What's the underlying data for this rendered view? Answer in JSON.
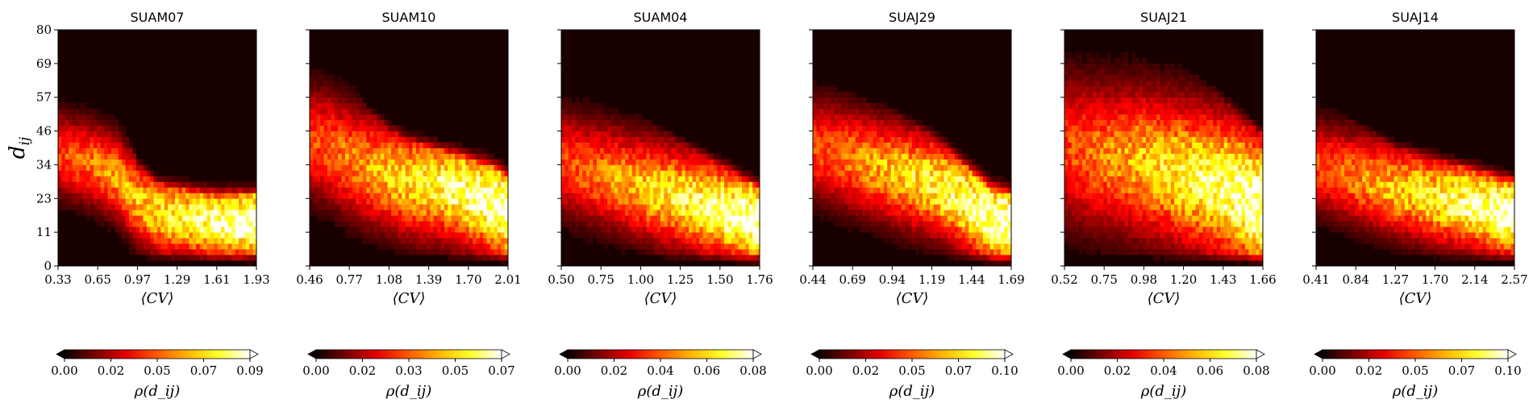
{
  "chart_data": [
    {
      "type": "heatmap",
      "title": "SUAM07",
      "xticks": [
        "0.33",
        "0.65",
        "0.97",
        "1.29",
        "1.61",
        "1.93"
      ],
      "xlim": [
        0.33,
        1.93
      ],
      "xlabel": "⟨CV⟩",
      "ylabel": "d_ij",
      "yticks": [
        "0",
        "11",
        "23",
        "34",
        "46",
        "57",
        "69",
        "80"
      ],
      "ylim": [
        0,
        80
      ],
      "colorbar": {
        "label": "ρ(d_ij)",
        "ticks": [
          "0.00",
          "0.02",
          "0.05",
          "0.07",
          "0.09"
        ],
        "range": [
          0,
          0.09
        ]
      },
      "ridge_d": [
        38,
        36,
        34,
        30,
        22,
        18,
        17,
        16,
        15,
        15,
        15
      ],
      "spread": 9,
      "cutoff": [
        62,
        66,
        62,
        52,
        34,
        28,
        26,
        25,
        24,
        24,
        24
      ]
    },
    {
      "type": "heatmap",
      "title": "SUAM10",
      "xticks": [
        "0.46",
        "0.77",
        "1.08",
        "1.39",
        "1.70",
        "2.01"
      ],
      "xlim": [
        0.46,
        2.01
      ],
      "xlabel": "⟨CV⟩",
      "yticks": [
        "0",
        "11",
        "23",
        "34",
        "46",
        "57",
        "69",
        "80"
      ],
      "ylim": [
        0,
        80
      ],
      "colorbar": {
        "label": "ρ(d_ij)",
        "ticks": [
          "0.00",
          "0.02",
          "0.03",
          "0.05",
          "0.07"
        ],
        "range": [
          0,
          0.07
        ]
      },
      "ridge_d": [
        42,
        40,
        36,
        33,
        31,
        29,
        28,
        27,
        25,
        22,
        19
      ],
      "spread": 12,
      "cutoff": [
        70,
        66,
        62,
        52,
        46,
        42,
        40,
        38,
        36,
        34,
        30
      ]
    },
    {
      "type": "heatmap",
      "title": "SUAM04",
      "xticks": [
        "0.50",
        "0.75",
        "1.00",
        "1.25",
        "1.50",
        "1.76"
      ],
      "xlim": [
        0.5,
        1.76
      ],
      "xlabel": "⟨CV⟩",
      "yticks": [
        "0",
        "11",
        "23",
        "34",
        "46",
        "57",
        "69",
        "80"
      ],
      "ylim": [
        0,
        80
      ],
      "colorbar": {
        "label": "ρ(d_ij)",
        "ticks": [
          "0.00",
          "0.02",
          "0.04",
          "0.06",
          "0.08"
        ],
        "range": [
          0,
          0.08
        ]
      },
      "ridge_d": [
        35,
        33,
        31,
        29,
        27,
        25,
        23,
        21,
        19,
        17,
        15
      ],
      "spread": 11,
      "cutoff": [
        60,
        57,
        55,
        53,
        50,
        46,
        42,
        38,
        34,
        30,
        26
      ]
    },
    {
      "type": "heatmap",
      "title": "SUAJ29",
      "xticks": [
        "0.44",
        "0.69",
        "0.94",
        "1.19",
        "1.44",
        "1.69"
      ],
      "xlim": [
        0.44,
        1.69
      ],
      "xlabel": "⟨CV⟩",
      "yticks": [
        "0",
        "11",
        "23",
        "34",
        "46",
        "57",
        "69",
        "80"
      ],
      "ylim": [
        0,
        80
      ],
      "colorbar": {
        "label": "ρ(d_ij)",
        "ticks": [
          "0.00",
          "0.02",
          "0.05",
          "0.07",
          "0.10"
        ],
        "range": [
          0,
          0.1
        ]
      },
      "ridge_d": [
        40,
        38,
        36,
        34,
        32,
        30,
        28,
        25,
        21,
        16,
        14
      ],
      "spread": 11,
      "cutoff": [
        62,
        60,
        58,
        55,
        52,
        48,
        44,
        38,
        32,
        26,
        24
      ]
    },
    {
      "type": "heatmap",
      "title": "SUAJ21",
      "xticks": [
        "0.52",
        "0.75",
        "0.98",
        "1.20",
        "1.43",
        "1.66"
      ],
      "xlim": [
        0.52,
        1.66
      ],
      "xlabel": "⟨CV⟩",
      "yticks": [
        "0",
        "11",
        "23",
        "34",
        "46",
        "57",
        "69",
        "80"
      ],
      "ylim": [
        0,
        80
      ],
      "colorbar": {
        "label": "ρ(d_ij)",
        "ticks": [
          "0.00",
          "0.02",
          "0.04",
          "0.06",
          "0.08"
        ],
        "range": [
          0,
          0.08
        ]
      },
      "ridge_d": [
        40,
        38,
        37,
        36,
        35,
        33,
        31,
        29,
        27,
        24,
        20
      ],
      "spread": 16,
      "cutoff": [
        80,
        80,
        78,
        76,
        74,
        72,
        68,
        62,
        56,
        50,
        44
      ]
    },
    {
      "type": "heatmap",
      "title": "SUAJ14",
      "xticks": [
        "0.41",
        "0.84",
        "1.27",
        "1.70",
        "2.14",
        "2.57"
      ],
      "xlim": [
        0.41,
        2.57
      ],
      "xlabel": "⟨CV⟩",
      "yticks": [
        "0",
        "11",
        "23",
        "34",
        "46",
        "57",
        "69",
        "80"
      ],
      "ylim": [
        0,
        80
      ],
      "colorbar": {
        "label": "ρ(d_ij)",
        "ticks": [
          "0.00",
          "0.02",
          "0.05",
          "0.07",
          "0.10"
        ],
        "range": [
          0,
          0.1
        ]
      },
      "ridge_d": [
        34,
        32,
        30,
        28,
        26,
        25,
        23,
        22,
        21,
        19,
        18
      ],
      "spread": 10,
      "cutoff": [
        56,
        52,
        48,
        44,
        40,
        38,
        36,
        34,
        32,
        30,
        28
      ]
    }
  ]
}
